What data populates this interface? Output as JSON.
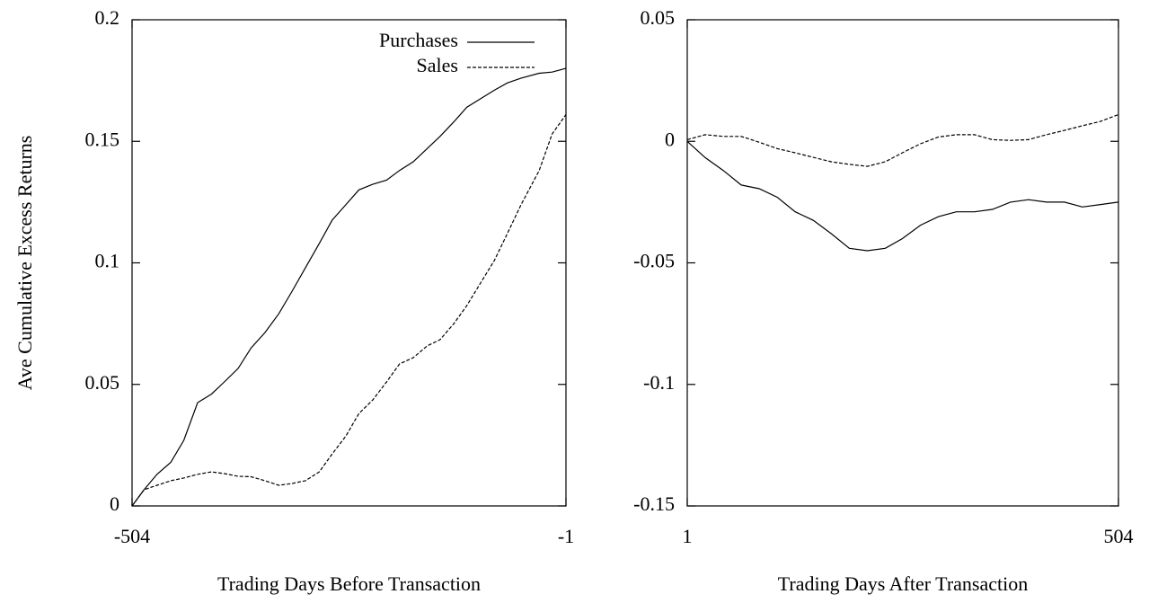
{
  "chart_data": [
    {
      "type": "line",
      "ylabel": "Ave Cumulative Excess Returns",
      "xlabel": "Trading Days Before Transaction",
      "xlim": [
        -504,
        -1
      ],
      "xticks": [
        -504,
        -1
      ],
      "ylim": [
        0,
        0.2
      ],
      "yticks": [
        0,
        0.05,
        0.1,
        0.15,
        0.2
      ],
      "legend": "upper right",
      "x": [
        -504,
        -490,
        -475,
        -459,
        -444,
        -428,
        -412,
        -397,
        -381,
        -366,
        -350,
        -334,
        -319,
        -303,
        -287,
        -272,
        -256,
        -241,
        -225,
        -209,
        -194,
        -178,
        -162,
        -147,
        -131,
        -116,
        -100,
        -84,
        -69,
        -53,
        -32,
        -17,
        -1
      ],
      "series": [
        {
          "name": "Purchases",
          "color": "#000000",
          "dash": "solid",
          "values": [
            0,
            0.0067,
            0.013,
            0.018,
            0.027,
            0.0425,
            0.046,
            0.051,
            0.0566,
            0.065,
            0.0713,
            0.079,
            0.088,
            0.098,
            0.108,
            0.1176,
            0.124,
            0.13,
            0.1323,
            0.134,
            0.138,
            0.1416,
            0.147,
            0.152,
            0.158,
            0.164,
            0.1675,
            0.171,
            0.174,
            0.176,
            0.178,
            0.1785,
            0.18
          ]
        },
        {
          "name": "Sales",
          "color": "#000000",
          "dash": "dashed",
          "values": [
            0,
            0.0067,
            0.0085,
            0.0104,
            0.0115,
            0.013,
            0.014,
            0.0133,
            0.0122,
            0.012,
            0.0104,
            0.0085,
            0.0092,
            0.0104,
            0.014,
            0.0214,
            0.0288,
            0.038,
            0.0436,
            0.051,
            0.0584,
            0.061,
            0.0658,
            0.0684,
            0.075,
            0.0824,
            0.0917,
            0.101,
            0.112,
            0.124,
            0.138,
            0.153,
            0.161
          ]
        }
      ]
    },
    {
      "type": "line",
      "xlabel": "Trading Days After Transaction",
      "xlim": [
        1,
        504
      ],
      "xticks": [
        1,
        504
      ],
      "ylim": [
        -0.15,
        0.05
      ],
      "yticks": [
        -0.15,
        -0.1,
        -0.05,
        0,
        0.05
      ],
      "x": [
        1,
        22,
        43,
        64,
        85,
        106,
        127,
        148,
        169,
        190,
        211,
        232,
        252,
        273,
        294,
        315,
        336,
        357,
        378,
        399,
        420,
        441,
        462,
        483,
        504
      ],
      "series": [
        {
          "color": "#000000",
          "dash": "solid",
          "values": [
            0,
            -0.0067,
            -0.012,
            -0.018,
            -0.0195,
            -0.023,
            -0.029,
            -0.0325,
            -0.038,
            -0.044,
            -0.045,
            -0.044,
            -0.04,
            -0.0345,
            -0.031,
            -0.029,
            -0.029,
            -0.028,
            -0.025,
            -0.024,
            -0.025,
            -0.025,
            -0.027,
            -0.026,
            -0.025
          ]
        },
        {
          "color": "#000000",
          "dash": "dashed",
          "values": [
            0.0007,
            0.0027,
            0.002,
            0.002,
            -0.0004,
            -0.003,
            -0.0047,
            -0.0066,
            -0.0084,
            -0.0095,
            -0.0103,
            -0.0084,
            -0.0047,
            -0.001,
            0.0018,
            0.0027,
            0.0027,
            0.0007,
            0.0004,
            0.0007,
            0.0027,
            0.0045,
            0.0064,
            0.0082,
            0.011
          ]
        }
      ]
    }
  ]
}
